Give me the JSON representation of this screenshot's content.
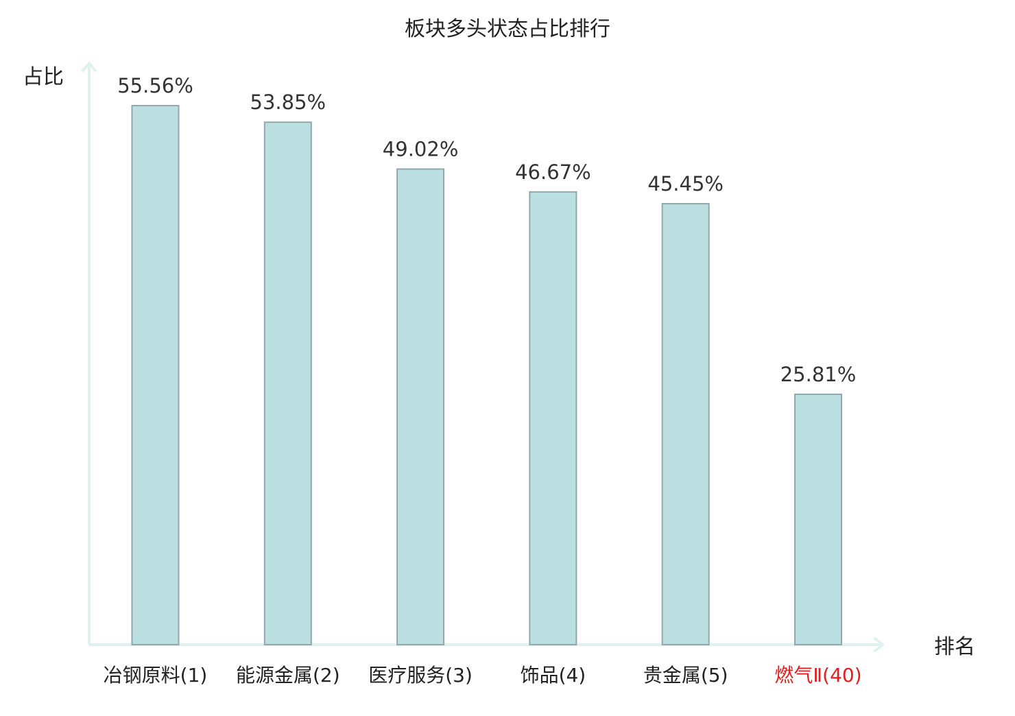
{
  "chart_data": {
    "type": "bar",
    "title": "板块多头状态占比排行",
    "ylabel": "占比",
    "xlabel": "排名",
    "categories": [
      "冶钢原料(1)",
      "能源金属(2)",
      "医疗服务(3)",
      "饰品(4)",
      "贵金属(5)",
      "燃气Ⅱ(40)"
    ],
    "values": [
      55.56,
      53.85,
      49.02,
      46.67,
      45.45,
      25.81
    ],
    "value_labels": [
      "55.56%",
      "53.85%",
      "49.02%",
      "46.67%",
      "45.45%",
      "25.81%"
    ],
    "highlight_index": 5,
    "ylim": [
      0,
      55.56
    ],
    "grid": false,
    "colors": {
      "bar_fill": "#bce0e2",
      "bar_stroke": "#8fa9aa",
      "axis": "#e0f2ef",
      "label_text": "#333333",
      "category_text": "#222222",
      "highlight_text": "#e02020"
    }
  }
}
